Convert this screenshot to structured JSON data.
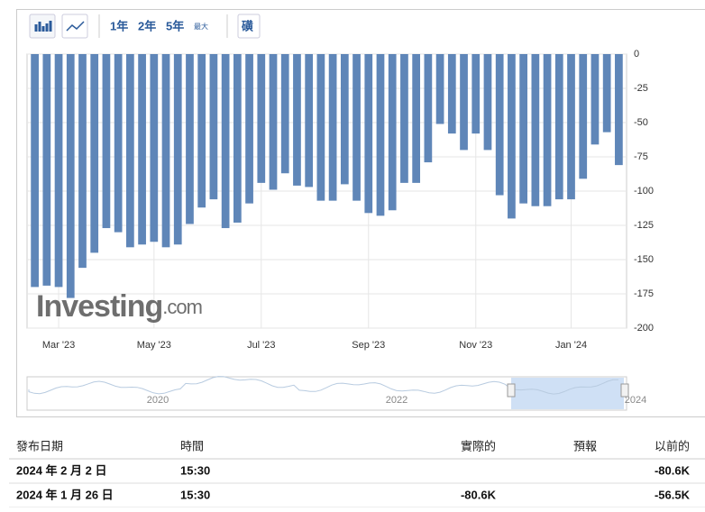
{
  "toolbar": {
    "ranges": [
      "1年",
      "2年",
      "5年",
      "最大"
    ],
    "indicator": "磺"
  },
  "chart_data": {
    "type": "bar",
    "color": "#5f86b8",
    "categories": [
      null,
      null,
      "Mar '23",
      null,
      null,
      null,
      null,
      null,
      null,
      null,
      "May '23",
      null,
      null,
      null,
      null,
      null,
      null,
      null,
      null,
      "Jul '23",
      null,
      null,
      null,
      null,
      null,
      null,
      null,
      null,
      "Sep '23",
      null,
      null,
      null,
      null,
      null,
      null,
      null,
      null,
      "Nov '23",
      null,
      null,
      null,
      null,
      null,
      null,
      null,
      "Jan '24",
      null,
      null,
      null,
      null
    ],
    "values": [
      -170,
      -169,
      -170,
      -178,
      -156,
      -145,
      -127,
      -130,
      -141,
      -139,
      -137,
      -141,
      -139,
      -124,
      -112,
      -106,
      -127,
      -123,
      -109,
      -94,
      -99,
      -87,
      -96,
      -97,
      -107,
      -107,
      -95,
      -107,
      -116,
      -118,
      -114,
      -94,
      -94,
      -79,
      -51,
      -58,
      -70,
      -58,
      -70,
      -103,
      -120,
      -109,
      -111,
      -111,
      -106,
      -106,
      -91,
      -66,
      -57,
      -81
    ],
    "ylim": [
      -200,
      0
    ],
    "yticks": [
      -200,
      -175,
      -150,
      -125,
      -100,
      -75,
      -50,
      -25,
      0
    ],
    "grid": true,
    "watermark": [
      "Investing",
      ".com"
    ],
    "navigator_labels": [
      "2020",
      "2022",
      "2024"
    ]
  },
  "table": {
    "header": [
      "發布日期",
      "時間",
      "實際的",
      "預報",
      "以前的"
    ],
    "rows": [
      [
        "2024 年 2 月 2 日",
        "15:30",
        null,
        null,
        "-80.6K"
      ],
      [
        "2024 年 1 月 26 日",
        "15:30",
        "-80.6K",
        null,
        "-56.5K"
      ]
    ]
  }
}
